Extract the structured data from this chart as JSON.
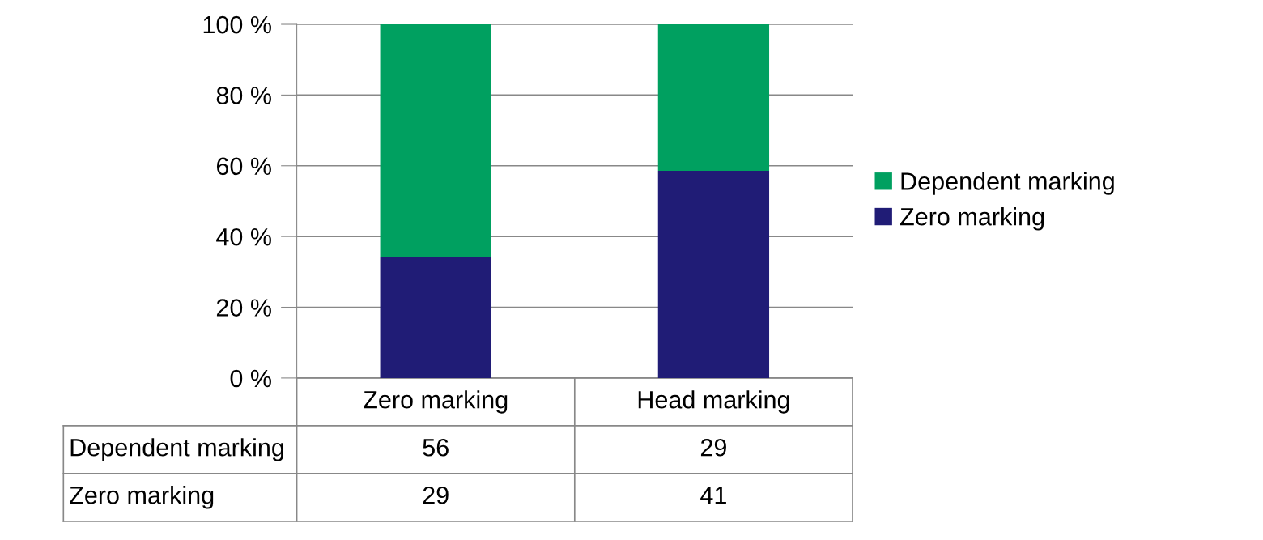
{
  "chart_data": {
    "type": "bar",
    "stacked": true,
    "categories": [
      "Zero marking",
      "Head marking"
    ],
    "series": [
      {
        "name": "Zero marking",
        "color": "#201c76",
        "values": [
          34.1,
          58.6
        ]
      },
      {
        "name": "Dependent marking",
        "color": "#00a060",
        "values": [
          65.9,
          41.4
        ]
      }
    ],
    "annotations": [
      "56",
      "29",
      "29",
      "41"
    ],
    "ylim": [
      0,
      100
    ],
    "yticks": [
      {
        "value": 0,
        "label": "0 %"
      },
      {
        "value": 20,
        "label": "20 %"
      },
      {
        "value": 40,
        "label": "40 %"
      },
      {
        "value": 60,
        "label": "60 %"
      },
      {
        "value": 80,
        "label": "80 %"
      },
      {
        "value": 100,
        "label": "100 %"
      }
    ],
    "grid": "y",
    "legend": "right"
  }
}
